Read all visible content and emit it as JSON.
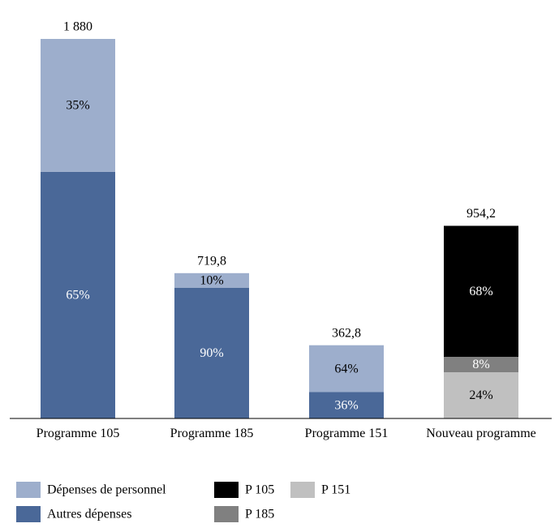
{
  "chart_data": {
    "type": "bar",
    "stacked": true,
    "categories": [
      "Programme 105",
      "Programme 185",
      "Programme 151",
      "Nouveau programme"
    ],
    "totals": [
      {
        "value": 1880,
        "label": "1 880"
      },
      {
        "value": 719.8,
        "label": "719,8"
      },
      {
        "value": 362.8,
        "label": "362,8"
      },
      {
        "value": 954.2,
        "label": "954,2"
      }
    ],
    "series": [
      {
        "name": "Autres dépenses",
        "color": "#4a6898",
        "values": [
          65,
          90,
          36,
          null
        ],
        "value_labels": [
          "65%",
          "90%",
          "36%",
          null
        ]
      },
      {
        "name": "P 151",
        "color": "#c0c0c0",
        "values": [
          null,
          null,
          null,
          24
        ],
        "value_labels": [
          null,
          null,
          null,
          "24%"
        ]
      },
      {
        "name": "P 185",
        "color": "#808080",
        "values": [
          null,
          null,
          null,
          8
        ],
        "value_labels": [
          null,
          null,
          null,
          "8%"
        ]
      },
      {
        "name": "Dépenses de personnel",
        "color": "#9daecc",
        "values": [
          35,
          10,
          64,
          null
        ],
        "value_labels": [
          "35%",
          "10%",
          "64%",
          null
        ]
      },
      {
        "name": "P 105",
        "color": "#000000",
        "values": [
          null,
          null,
          null,
          68
        ],
        "value_labels": [
          null,
          null,
          null,
          "68%"
        ]
      }
    ]
  }
}
